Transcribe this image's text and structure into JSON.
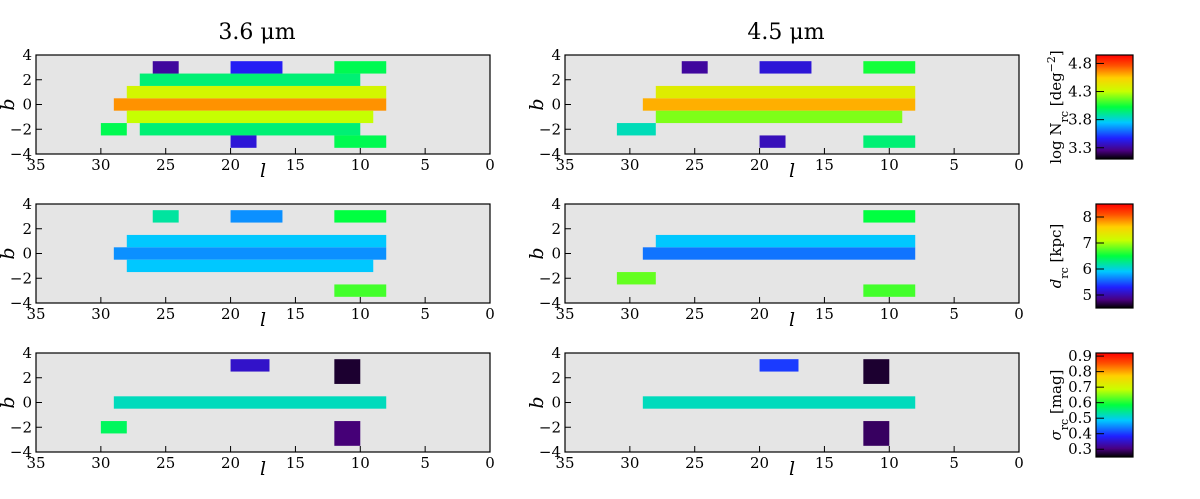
{
  "figure": {
    "column_titles": [
      "3.6 μm",
      "4.5 μm"
    ],
    "row_colorbars": [
      {
        "label": "log N_rc [deg^-2]",
        "label_main": "log N",
        "label_sub": "rc",
        "label_tail": " [deg",
        "label_sup": "−2",
        "label_end": "]",
        "ticks": [
          "4.8",
          "4.3",
          "3.8",
          "3.3"
        ],
        "range": [
          3.1,
          4.95
        ]
      },
      {
        "label": "d_rc [kpc]",
        "label_main": "d",
        "label_sub": "rc",
        "label_tail": " [kpc]",
        "label_sup": "",
        "label_end": "",
        "ticks": [
          "8",
          "7",
          "6",
          "5"
        ],
        "range": [
          4.5,
          8.5
        ]
      },
      {
        "label": "σ_rc [mag]",
        "label_main": "σ",
        "label_sub": "rc",
        "label_tail": " [mag]",
        "label_sup": "",
        "label_end": "",
        "ticks": [
          "0.9",
          "0.8",
          "0.7",
          "0.6",
          "0.5",
          "0.4",
          "0.3"
        ],
        "range": [
          0.25,
          0.92
        ]
      }
    ],
    "x_tick_labels": [
      "35",
      "30",
      "25",
      "20",
      "15",
      "10",
      "5",
      "0"
    ],
    "y_tick_labels": [
      "4",
      "2",
      "0",
      "−2",
      "−4"
    ],
    "xlabel": "l",
    "ylabel": "b"
  },
  "chart_data": {
    "type": "heatmap",
    "colormap": "rainbow (black-purple-blue-cyan-green-yellow-orange-red)",
    "missing_color": "#e5e5e5",
    "x_label": "l",
    "y_label": "b",
    "xlim": [
      35,
      0
    ],
    "ylim": [
      -4,
      4
    ],
    "panels": [
      {
        "row": "log N_rc [deg^-2]",
        "column": "3.6 μm",
        "value_range": [
          3.1,
          4.95
        ],
        "cells": [
          {
            "l0": 29,
            "l1": 8,
            "b0": -0.5,
            "b1": 0.5,
            "v": 4.65
          },
          {
            "l0": 28,
            "l1": 8,
            "b0": 0.5,
            "b1": 1.5,
            "v": 4.35
          },
          {
            "l0": 28,
            "l1": 9,
            "b0": -1.5,
            "b1": -0.5,
            "v": 4.3
          },
          {
            "l0": 27,
            "l1": 10,
            "b0": 1.5,
            "b1": 2.5,
            "v": 3.95
          },
          {
            "l0": 27,
            "l1": 10,
            "b0": -2.5,
            "b1": -1.5,
            "v": 3.95
          },
          {
            "l0": 26,
            "l1": 24,
            "b0": 2.5,
            "b1": 3.5,
            "v": 3.3
          },
          {
            "l0": 20,
            "l1": 16,
            "b0": 2.5,
            "b1": 3.5,
            "v": 3.45
          },
          {
            "l0": 20,
            "l1": 18,
            "b0": -3.5,
            "b1": -2.5,
            "v": 3.4
          },
          {
            "l0": 12,
            "l1": 8,
            "b0": 2.5,
            "b1": 3.5,
            "v": 4.0
          },
          {
            "l0": 12,
            "l1": 8,
            "b0": -3.5,
            "b1": -2.5,
            "v": 4.0
          },
          {
            "l0": 30,
            "l1": 28,
            "b0": -2.5,
            "b1": -1.5,
            "v": 4.0
          }
        ]
      },
      {
        "row": "log N_rc [deg^-2]",
        "column": "4.5 μm",
        "value_range": [
          3.1,
          4.95
        ],
        "cells": [
          {
            "l0": 29,
            "l1": 8,
            "b0": -0.5,
            "b1": 0.5,
            "v": 4.6
          },
          {
            "l0": 28,
            "l1": 8,
            "b0": 0.5,
            "b1": 1.5,
            "v": 4.4
          },
          {
            "l0": 28,
            "l1": 9,
            "b0": -1.5,
            "b1": -0.5,
            "v": 4.2
          },
          {
            "l0": 31,
            "l1": 28,
            "b0": -2.5,
            "b1": -1.5,
            "v": 3.85
          },
          {
            "l0": 26,
            "l1": 24,
            "b0": 2.5,
            "b1": 3.5,
            "v": 3.3
          },
          {
            "l0": 20,
            "l1": 16,
            "b0": 2.5,
            "b1": 3.5,
            "v": 3.4
          },
          {
            "l0": 20,
            "l1": 18,
            "b0": -3.5,
            "b1": -2.5,
            "v": 3.35
          },
          {
            "l0": 12,
            "l1": 8,
            "b0": 2.5,
            "b1": 3.5,
            "v": 4.05
          },
          {
            "l0": 12,
            "l1": 8,
            "b0": -3.5,
            "b1": -2.5,
            "v": 3.95
          }
        ]
      },
      {
        "row": "d_rc [kpc]",
        "column": "3.6 μm",
        "value_range": [
          4.5,
          8.5
        ],
        "cells": [
          {
            "l0": 29,
            "l1": 8,
            "b0": -0.5,
            "b1": 0.5,
            "v": 5.7
          },
          {
            "l0": 28,
            "l1": 8,
            "b0": 0.5,
            "b1": 1.5,
            "v": 5.9
          },
          {
            "l0": 28,
            "l1": 9,
            "b0": -1.5,
            "b1": -0.5,
            "v": 5.9
          },
          {
            "l0": 26,
            "l1": 24,
            "b0": 2.5,
            "b1": 3.5,
            "v": 6.2
          },
          {
            "l0": 20,
            "l1": 16,
            "b0": 2.5,
            "b1": 3.5,
            "v": 5.7
          },
          {
            "l0": 12,
            "l1": 8,
            "b0": 2.5,
            "b1": 3.5,
            "v": 6.5
          },
          {
            "l0": 12,
            "l1": 8,
            "b0": -3.5,
            "b1": -2.5,
            "v": 6.7
          }
        ]
      },
      {
        "row": "d_rc [kpc]",
        "column": "4.5 μm",
        "value_range": [
          4.5,
          8.5
        ],
        "cells": [
          {
            "l0": 29,
            "l1": 8,
            "b0": -0.5,
            "b1": 0.5,
            "v": 5.6
          },
          {
            "l0": 28,
            "l1": 8,
            "b0": 0.5,
            "b1": 1.5,
            "v": 5.9
          },
          {
            "l0": 31,
            "l1": 28,
            "b0": -2.5,
            "b1": -1.5,
            "v": 6.8
          },
          {
            "l0": 12,
            "l1": 8,
            "b0": 2.5,
            "b1": 3.5,
            "v": 6.5
          },
          {
            "l0": 12,
            "l1": 8,
            "b0": -3.5,
            "b1": -2.5,
            "v": 6.7
          }
        ]
      },
      {
        "row": "σ_rc [mag]",
        "column": "3.6 μm",
        "value_range": [
          0.25,
          0.92
        ],
        "cells": [
          {
            "l0": 29,
            "l1": 8,
            "b0": -0.5,
            "b1": 0.5,
            "v": 0.52
          },
          {
            "l0": 20,
            "l1": 17,
            "b0": 2.5,
            "b1": 3.5,
            "v": 0.35
          },
          {
            "l0": 12,
            "l1": 10,
            "b0": 1.5,
            "b1": 3.5,
            "v": 0.27
          },
          {
            "l0": 12,
            "l1": 10,
            "b0": -3.5,
            "b1": -1.5,
            "v": 0.3
          },
          {
            "l0": 30,
            "l1": 28,
            "b0": -2.5,
            "b1": -1.5,
            "v": 0.57
          }
        ]
      },
      {
        "row": "σ_rc [mag]",
        "column": "4.5 μm",
        "value_range": [
          0.25,
          0.92
        ],
        "cells": [
          {
            "l0": 29,
            "l1": 8,
            "b0": -0.5,
            "b1": 0.5,
            "v": 0.52
          },
          {
            "l0": 20,
            "l1": 17,
            "b0": 2.5,
            "b1": 3.5,
            "v": 0.4
          },
          {
            "l0": 12,
            "l1": 10,
            "b0": 1.5,
            "b1": 3.5,
            "v": 0.27
          },
          {
            "l0": 12,
            "l1": 10,
            "b0": -3.5,
            "b1": -1.5,
            "v": 0.29
          }
        ]
      }
    ]
  }
}
